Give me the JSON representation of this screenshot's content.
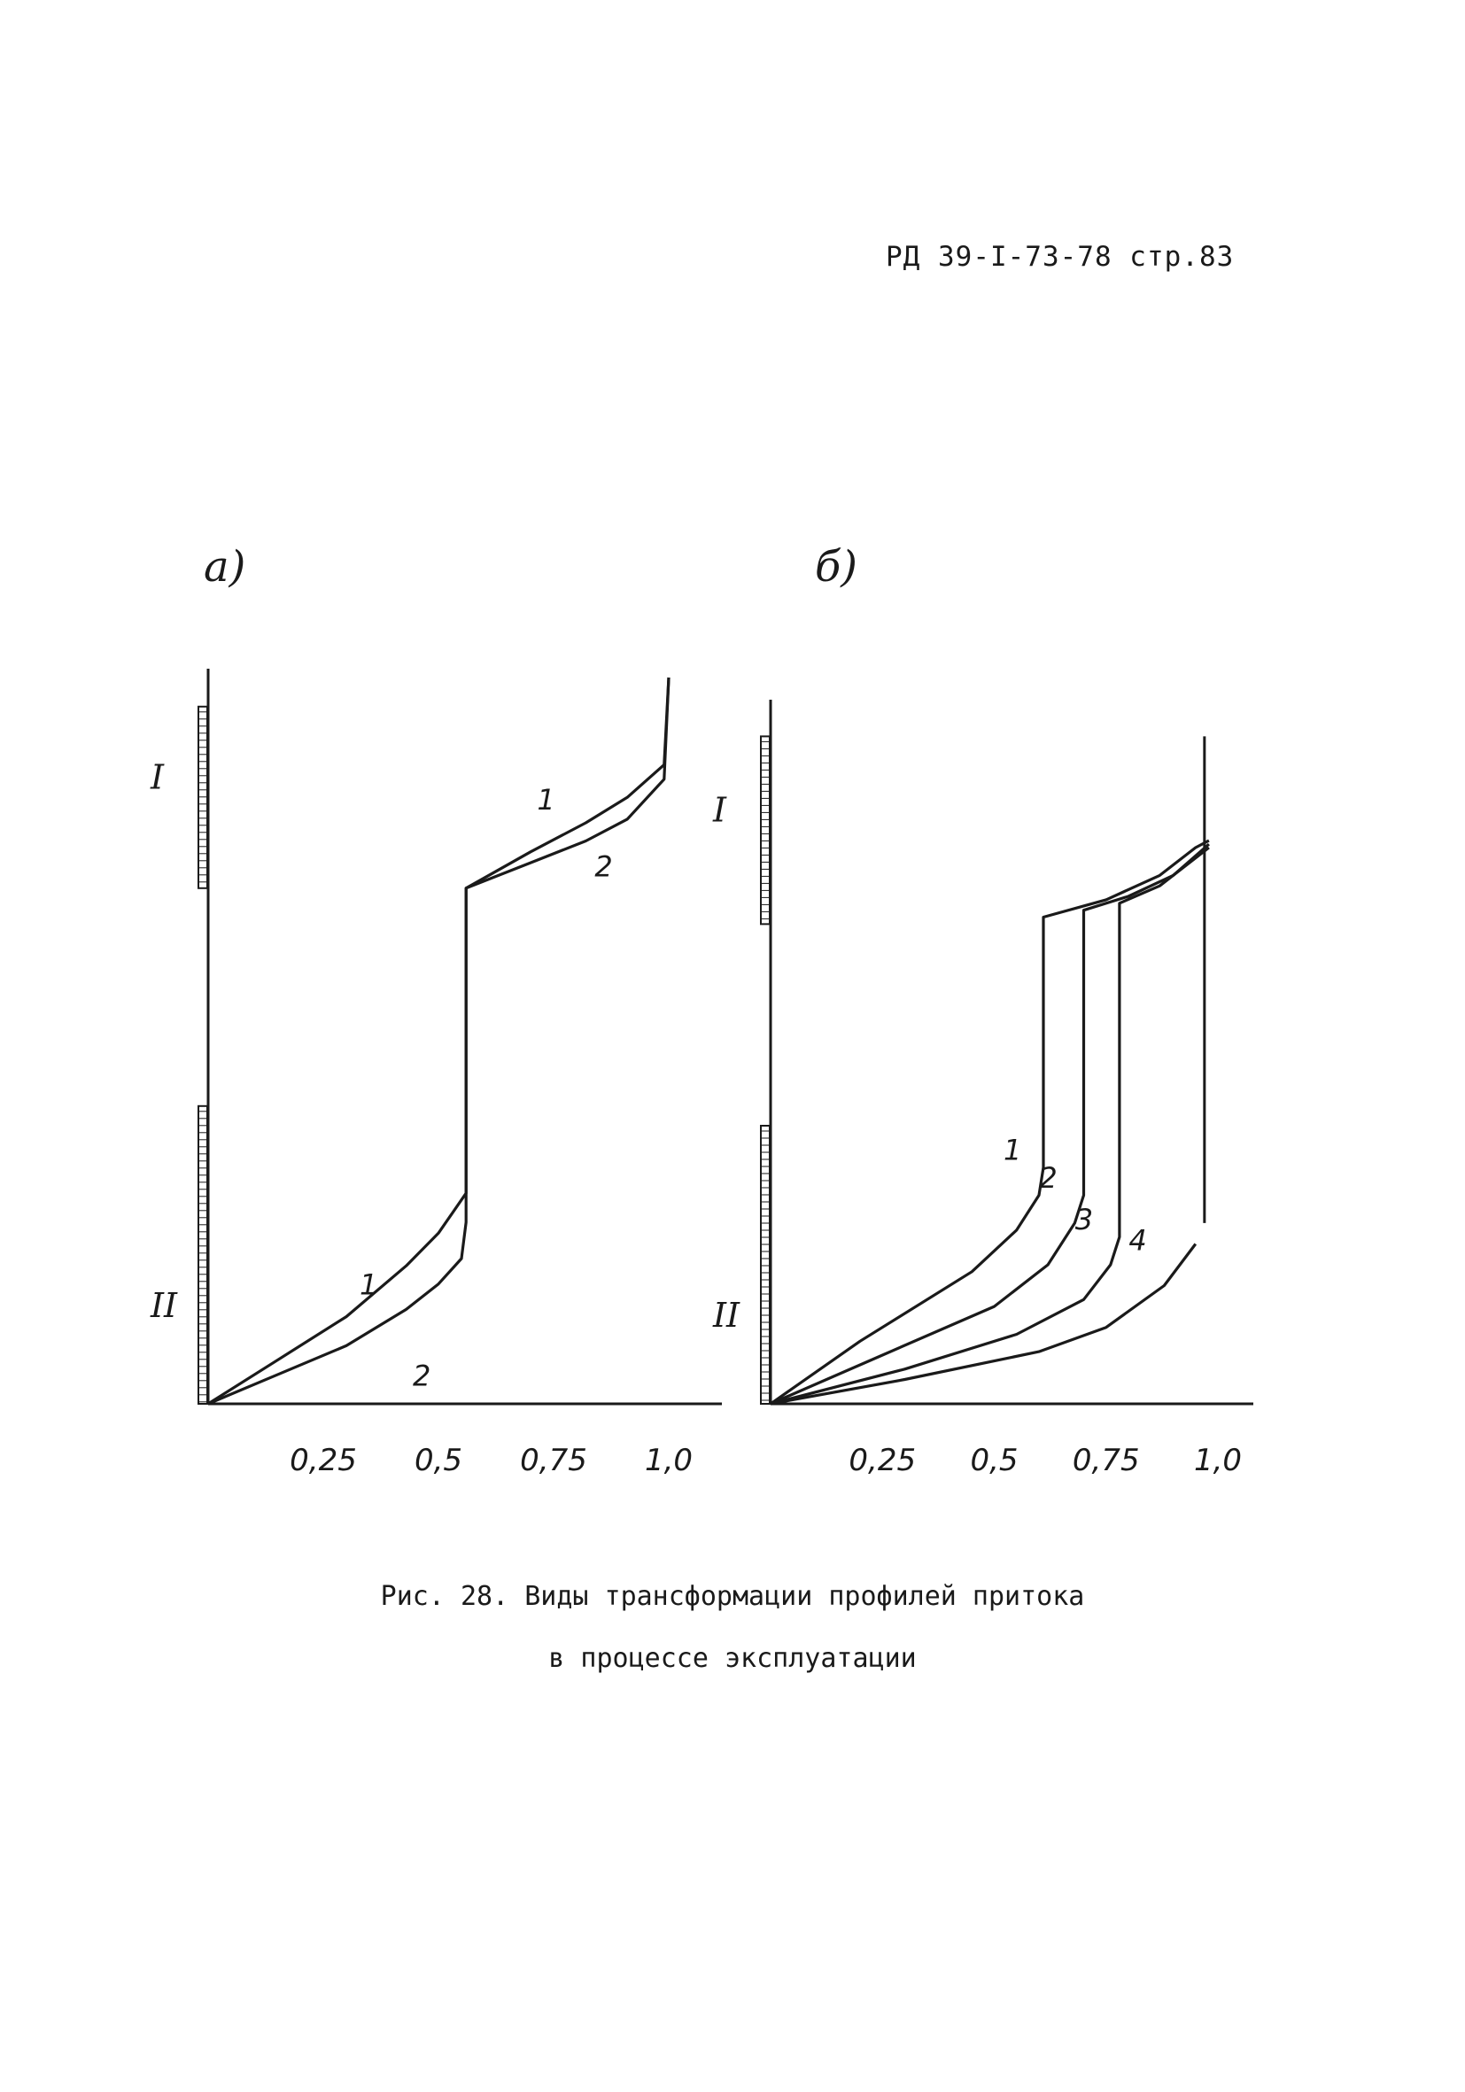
{
  "header": {
    "text": "РД  39-I-73-78  стр.83"
  },
  "caption": {
    "line1": "Рис. 28. Виды  трансформации профилей притока",
    "line2": "в процессе эксплуатации"
  },
  "chart_data": [
    {
      "type": "line",
      "panel_label": "а)",
      "xlabel": "",
      "ylabel": "",
      "xlim": [
        0,
        1.0
      ],
      "ylim": [
        0,
        1.0
      ],
      "x_ticks": [
        "0,25",
        "0,5",
        "0,75",
        "1,0"
      ],
      "x_tick_values": [
        0.25,
        0.5,
        0.75,
        1.0
      ],
      "zones": [
        {
          "label": "I",
          "y_from": 0.71,
          "y_to": 0.96
        },
        {
          "label": "II",
          "y_from": 0.0,
          "y_to": 0.41
        }
      ],
      "series": [
        {
          "name": "1",
          "points": [
            [
              0.0,
              0.0
            ],
            [
              0.15,
              0.06
            ],
            [
              0.3,
              0.12
            ],
            [
              0.43,
              0.19
            ],
            [
              0.5,
              0.235
            ],
            [
              0.56,
              0.29
            ],
            [
              0.56,
              0.71
            ],
            [
              0.7,
              0.76
            ],
            [
              0.82,
              0.8
            ],
            [
              0.91,
              0.835
            ],
            [
              0.99,
              0.88
            ],
            [
              1.0,
              1.0
            ]
          ]
        },
        {
          "name": "2",
          "points": [
            [
              0.0,
              0.0
            ],
            [
              0.15,
              0.04
            ],
            [
              0.3,
              0.08
            ],
            [
              0.43,
              0.13
            ],
            [
              0.5,
              0.165
            ],
            [
              0.55,
              0.2
            ],
            [
              0.56,
              0.25
            ],
            [
              0.56,
              0.71
            ],
            [
              0.7,
              0.745
            ],
            [
              0.82,
              0.775
            ],
            [
              0.91,
              0.805
            ],
            [
              0.99,
              0.86
            ],
            [
              1.0,
              1.0
            ]
          ]
        }
      ]
    },
    {
      "type": "line",
      "panel_label": "б)",
      "xlabel": "",
      "ylabel": "",
      "xlim": [
        0,
        1.0
      ],
      "ylim": [
        0,
        1.0
      ],
      "x_ticks": [
        "0,25",
        "0,5",
        "0,75",
        "1,0"
      ],
      "x_tick_values": [
        0.25,
        0.5,
        0.75,
        1.0
      ],
      "zones": [
        {
          "label": "I",
          "y_from": 0.69,
          "y_to": 0.96
        },
        {
          "label": "II",
          "y_from": 0.0,
          "y_to": 0.4
        }
      ],
      "series": [
        {
          "name": "1",
          "points": [
            [
              0.0,
              0.0
            ],
            [
              0.2,
              0.09
            ],
            [
              0.45,
              0.19
            ],
            [
              0.55,
              0.25
            ],
            [
              0.6,
              0.3
            ],
            [
              0.61,
              0.34
            ],
            [
              0.61,
              0.7
            ],
            [
              0.75,
              0.725
            ],
            [
              0.87,
              0.76
            ],
            [
              0.95,
              0.8
            ],
            [
              0.98,
              0.81
            ]
          ]
        },
        {
          "name": "2",
          "points": [
            [
              0.0,
              0.0
            ],
            [
              0.25,
              0.07
            ],
            [
              0.5,
              0.14
            ],
            [
              0.62,
              0.2
            ],
            [
              0.68,
              0.26
            ],
            [
              0.7,
              0.3
            ],
            [
              0.7,
              0.71
            ],
            [
              0.8,
              0.73
            ],
            [
              0.9,
              0.76
            ],
            [
              0.98,
              0.805
            ]
          ]
        },
        {
          "name": "3",
          "points": [
            [
              0.0,
              0.0
            ],
            [
              0.3,
              0.05
            ],
            [
              0.55,
              0.1
            ],
            [
              0.7,
              0.15
            ],
            [
              0.76,
              0.2
            ],
            [
              0.78,
              0.24
            ],
            [
              0.78,
              0.72
            ],
            [
              0.87,
              0.745
            ],
            [
              0.98,
              0.8
            ]
          ]
        },
        {
          "name": "4",
          "points": [
            [
              0.0,
              0.0
            ],
            [
              0.3,
              0.035
            ],
            [
              0.6,
              0.075
            ],
            [
              0.75,
              0.11
            ],
            [
              0.88,
              0.17
            ],
            [
              0.95,
              0.23
            ]
          ]
        }
      ],
      "extra_line": {
        "points": [
          [
            0.97,
            0.26
          ],
          [
            0.97,
            0.96
          ]
        ]
      }
    }
  ]
}
